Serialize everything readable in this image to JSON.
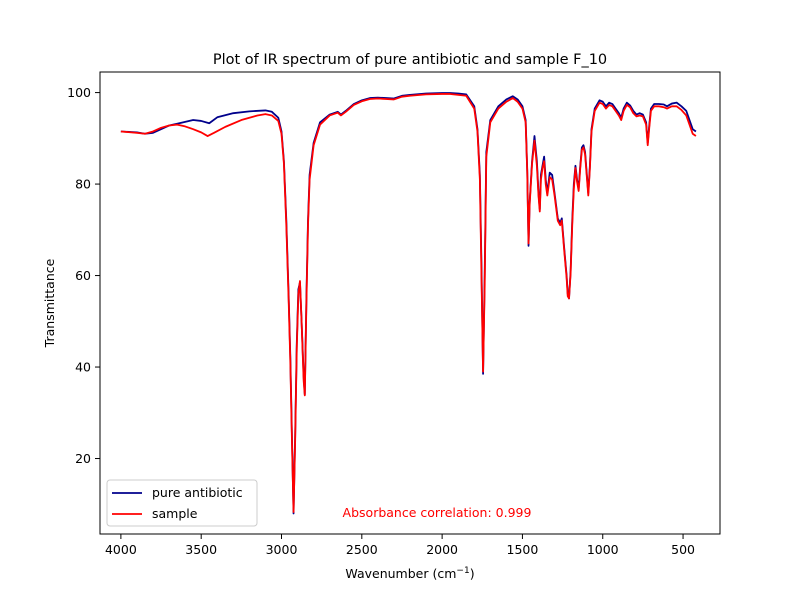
{
  "chart_data": {
    "type": "line",
    "title": "Plot of IR spectrum of pure antibiotic and sample F_10",
    "xlabel": "Wavenumber (cm",
    "xlabel_sup": "−1",
    "xlabel_close": ")",
    "ylabel": "Transmittance",
    "xlim": [
      4130,
      270
    ],
    "ylim": [
      3.5,
      104.5
    ],
    "x_inverted": true,
    "grid": false,
    "legend_position": "lower-left",
    "x_ticks": [
      4000,
      3500,
      3000,
      2500,
      2000,
      1500,
      1000,
      500
    ],
    "x_tick_labels": [
      "4000",
      "3500",
      "3000",
      "2500",
      "2000",
      "1500",
      "1000",
      "500"
    ],
    "y_ticks": [
      20,
      40,
      60,
      80,
      100
    ],
    "y_tick_labels": [
      "20",
      "40",
      "60",
      "80",
      "100"
    ],
    "annotation": {
      "text": "Absorbance correlation: 0.999",
      "color": "#ff0000",
      "x": 2200,
      "y": 7.5
    },
    "series": [
      {
        "name": "pure antibiotic",
        "color": "#00008b",
        "points": [
          [
            4000,
            91.5
          ],
          [
            3900,
            91.3
          ],
          [
            3850,
            91.0
          ],
          [
            3800,
            91.2
          ],
          [
            3750,
            92.0
          ],
          [
            3700,
            92.8
          ],
          [
            3650,
            93.2
          ],
          [
            3600,
            93.6
          ],
          [
            3550,
            94.0
          ],
          [
            3500,
            93.8
          ],
          [
            3450,
            93.3
          ],
          [
            3400,
            94.6
          ],
          [
            3300,
            95.5
          ],
          [
            3200,
            95.9
          ],
          [
            3100,
            96.1
          ],
          [
            3060,
            95.8
          ],
          [
            3020,
            94.5
          ],
          [
            3000,
            91.5
          ],
          [
            2985,
            85.0
          ],
          [
            2970,
            72.0
          ],
          [
            2955,
            55.0
          ],
          [
            2945,
            42.0
          ],
          [
            2935,
            25.0
          ],
          [
            2925,
            8.0
          ],
          [
            2915,
            25.0
          ],
          [
            2905,
            45.0
          ],
          [
            2895,
            57.0
          ],
          [
            2885,
            58.5
          ],
          [
            2875,
            50.0
          ],
          [
            2862,
            38.0
          ],
          [
            2855,
            34.0
          ],
          [
            2845,
            55.0
          ],
          [
            2835,
            72.0
          ],
          [
            2825,
            82.0
          ],
          [
            2800,
            89.0
          ],
          [
            2760,
            93.5
          ],
          [
            2700,
            95.2
          ],
          [
            2650,
            95.8
          ],
          [
            2630,
            95.2
          ],
          [
            2600,
            96.0
          ],
          [
            2550,
            97.5
          ],
          [
            2500,
            98.3
          ],
          [
            2450,
            98.8
          ],
          [
            2400,
            98.9
          ],
          [
            2350,
            98.8
          ],
          [
            2300,
            98.7
          ],
          [
            2250,
            99.3
          ],
          [
            2200,
            99.5
          ],
          [
            2100,
            99.8
          ],
          [
            2000,
            99.9
          ],
          [
            1950,
            99.9
          ],
          [
            1900,
            99.8
          ],
          [
            1850,
            99.6
          ],
          [
            1800,
            97.0
          ],
          [
            1780,
            92.0
          ],
          [
            1765,
            82.0
          ],
          [
            1755,
            62.0
          ],
          [
            1745,
            38.5
          ],
          [
            1735,
            60.0
          ],
          [
            1725,
            87.0
          ],
          [
            1700,
            94.0
          ],
          [
            1650,
            97.0
          ],
          [
            1600,
            98.5
          ],
          [
            1560,
            99.2
          ],
          [
            1530,
            98.5
          ],
          [
            1500,
            97.0
          ],
          [
            1480,
            94.0
          ],
          [
            1470,
            83.0
          ],
          [
            1462,
            66.5
          ],
          [
            1455,
            76.0
          ],
          [
            1440,
            85.0
          ],
          [
            1425,
            90.5
          ],
          [
            1410,
            85.0
          ],
          [
            1400,
            78.0
          ],
          [
            1392,
            74.5
          ],
          [
            1385,
            82.0
          ],
          [
            1375,
            84.0
          ],
          [
            1365,
            86.0
          ],
          [
            1355,
            81.0
          ],
          [
            1345,
            78.0
          ],
          [
            1330,
            82.5
          ],
          [
            1315,
            82.0
          ],
          [
            1300,
            78.0
          ],
          [
            1280,
            72.5
          ],
          [
            1265,
            71.5
          ],
          [
            1255,
            72.5
          ],
          [
            1240,
            66.0
          ],
          [
            1225,
            60.0
          ],
          [
            1218,
            56.0
          ],
          [
            1210,
            55.0
          ],
          [
            1200,
            61.0
          ],
          [
            1190,
            72.0
          ],
          [
            1180,
            80.0
          ],
          [
            1170,
            84.0
          ],
          [
            1160,
            81.0
          ],
          [
            1150,
            79.0
          ],
          [
            1140,
            84.0
          ],
          [
            1130,
            88.0
          ],
          [
            1120,
            88.5
          ],
          [
            1110,
            87.0
          ],
          [
            1100,
            82.5
          ],
          [
            1090,
            78.0
          ],
          [
            1080,
            84.0
          ],
          [
            1070,
            92.0
          ],
          [
            1050,
            96.5
          ],
          [
            1020,
            98.3
          ],
          [
            1000,
            98.0
          ],
          [
            980,
            97.0
          ],
          [
            960,
            97.8
          ],
          [
            940,
            97.5
          ],
          [
            920,
            96.5
          ],
          [
            900,
            95.5
          ],
          [
            885,
            94.5
          ],
          [
            870,
            96.5
          ],
          [
            850,
            97.8
          ],
          [
            830,
            97.2
          ],
          [
            810,
            96.0
          ],
          [
            790,
            95.2
          ],
          [
            770,
            95.5
          ],
          [
            750,
            95.2
          ],
          [
            730,
            93.5
          ],
          [
            720,
            89.0
          ],
          [
            710,
            93.0
          ],
          [
            700,
            96.5
          ],
          [
            680,
            97.5
          ],
          [
            650,
            97.5
          ],
          [
            620,
            97.4
          ],
          [
            600,
            97.0
          ],
          [
            570,
            97.6
          ],
          [
            540,
            97.8
          ],
          [
            510,
            97.0
          ],
          [
            480,
            96.0
          ],
          [
            460,
            94.0
          ],
          [
            440,
            92.0
          ],
          [
            420,
            91.5
          ]
        ]
      },
      {
        "name": "sample",
        "color": "#ff0000",
        "points": [
          [
            4000,
            91.5
          ],
          [
            3900,
            91.2
          ],
          [
            3850,
            91.0
          ],
          [
            3800,
            91.5
          ],
          [
            3750,
            92.3
          ],
          [
            3700,
            92.8
          ],
          [
            3650,
            93.0
          ],
          [
            3600,
            92.6
          ],
          [
            3550,
            92.0
          ],
          [
            3500,
            91.3
          ],
          [
            3460,
            90.5
          ],
          [
            3420,
            91.2
          ],
          [
            3350,
            92.5
          ],
          [
            3250,
            94.0
          ],
          [
            3150,
            95.0
          ],
          [
            3100,
            95.3
          ],
          [
            3060,
            95.0
          ],
          [
            3020,
            93.8
          ],
          [
            3000,
            91.0
          ],
          [
            2985,
            84.5
          ],
          [
            2970,
            71.0
          ],
          [
            2955,
            54.0
          ],
          [
            2945,
            41.0
          ],
          [
            2935,
            24.0
          ],
          [
            2925,
            8.3
          ],
          [
            2915,
            24.0
          ],
          [
            2905,
            44.0
          ],
          [
            2895,
            56.0
          ],
          [
            2885,
            58.8
          ],
          [
            2875,
            50.0
          ],
          [
            2862,
            37.0
          ],
          [
            2855,
            33.8
          ],
          [
            2845,
            54.0
          ],
          [
            2835,
            71.0
          ],
          [
            2825,
            81.0
          ],
          [
            2800,
            88.5
          ],
          [
            2760,
            93.0
          ],
          [
            2700,
            95.0
          ],
          [
            2650,
            95.6
          ],
          [
            2630,
            95.0
          ],
          [
            2600,
            95.8
          ],
          [
            2550,
            97.3
          ],
          [
            2500,
            98.1
          ],
          [
            2450,
            98.6
          ],
          [
            2400,
            98.7
          ],
          [
            2350,
            98.6
          ],
          [
            2300,
            98.5
          ],
          [
            2250,
            99.1
          ],
          [
            2200,
            99.3
          ],
          [
            2100,
            99.6
          ],
          [
            2000,
            99.7
          ],
          [
            1950,
            99.7
          ],
          [
            1900,
            99.5
          ],
          [
            1850,
            99.3
          ],
          [
            1800,
            96.5
          ],
          [
            1780,
            91.5
          ],
          [
            1765,
            81.0
          ],
          [
            1755,
            60.0
          ],
          [
            1745,
            39.0
          ],
          [
            1735,
            58.0
          ],
          [
            1725,
            86.0
          ],
          [
            1700,
            93.5
          ],
          [
            1650,
            96.5
          ],
          [
            1600,
            98.0
          ],
          [
            1560,
            98.8
          ],
          [
            1530,
            98.0
          ],
          [
            1500,
            96.5
          ],
          [
            1480,
            93.5
          ],
          [
            1470,
            82.5
          ],
          [
            1462,
            67.0
          ],
          [
            1455,
            75.5
          ],
          [
            1440,
            84.5
          ],
          [
            1425,
            89.5
          ],
          [
            1410,
            84.0
          ],
          [
            1400,
            77.5
          ],
          [
            1392,
            74.0
          ],
          [
            1385,
            81.0
          ],
          [
            1375,
            83.5
          ],
          [
            1365,
            85.0
          ],
          [
            1355,
            80.0
          ],
          [
            1345,
            77.5
          ],
          [
            1330,
            81.5
          ],
          [
            1315,
            81.0
          ],
          [
            1300,
            77.5
          ],
          [
            1280,
            72.0
          ],
          [
            1265,
            71.0
          ],
          [
            1255,
            72.0
          ],
          [
            1240,
            65.5
          ],
          [
            1225,
            59.5
          ],
          [
            1218,
            55.5
          ],
          [
            1210,
            55.0
          ],
          [
            1200,
            60.5
          ],
          [
            1190,
            71.0
          ],
          [
            1180,
            79.0
          ],
          [
            1170,
            83.5
          ],
          [
            1160,
            80.5
          ],
          [
            1150,
            78.5
          ],
          [
            1140,
            83.5
          ],
          [
            1130,
            87.5
          ],
          [
            1120,
            88.0
          ],
          [
            1110,
            86.5
          ],
          [
            1100,
            82.0
          ],
          [
            1090,
            77.5
          ],
          [
            1080,
            83.5
          ],
          [
            1070,
            91.5
          ],
          [
            1050,
            96.0
          ],
          [
            1020,
            97.8
          ],
          [
            1000,
            97.5
          ],
          [
            980,
            96.5
          ],
          [
            960,
            97.3
          ],
          [
            940,
            97.0
          ],
          [
            920,
            96.0
          ],
          [
            900,
            95.0
          ],
          [
            885,
            94.0
          ],
          [
            870,
            96.0
          ],
          [
            850,
            97.3
          ],
          [
            830,
            96.8
          ],
          [
            810,
            95.5
          ],
          [
            790,
            94.8
          ],
          [
            770,
            95.0
          ],
          [
            750,
            94.8
          ],
          [
            730,
            93.0
          ],
          [
            720,
            88.5
          ],
          [
            710,
            92.5
          ],
          [
            700,
            96.0
          ],
          [
            680,
            97.0
          ],
          [
            650,
            97.0
          ],
          [
            620,
            96.8
          ],
          [
            600,
            96.5
          ],
          [
            570,
            97.0
          ],
          [
            540,
            97.0
          ],
          [
            510,
            96.2
          ],
          [
            480,
            95.0
          ],
          [
            460,
            93.0
          ],
          [
            440,
            91.0
          ],
          [
            420,
            90.5
          ]
        ]
      }
    ]
  }
}
